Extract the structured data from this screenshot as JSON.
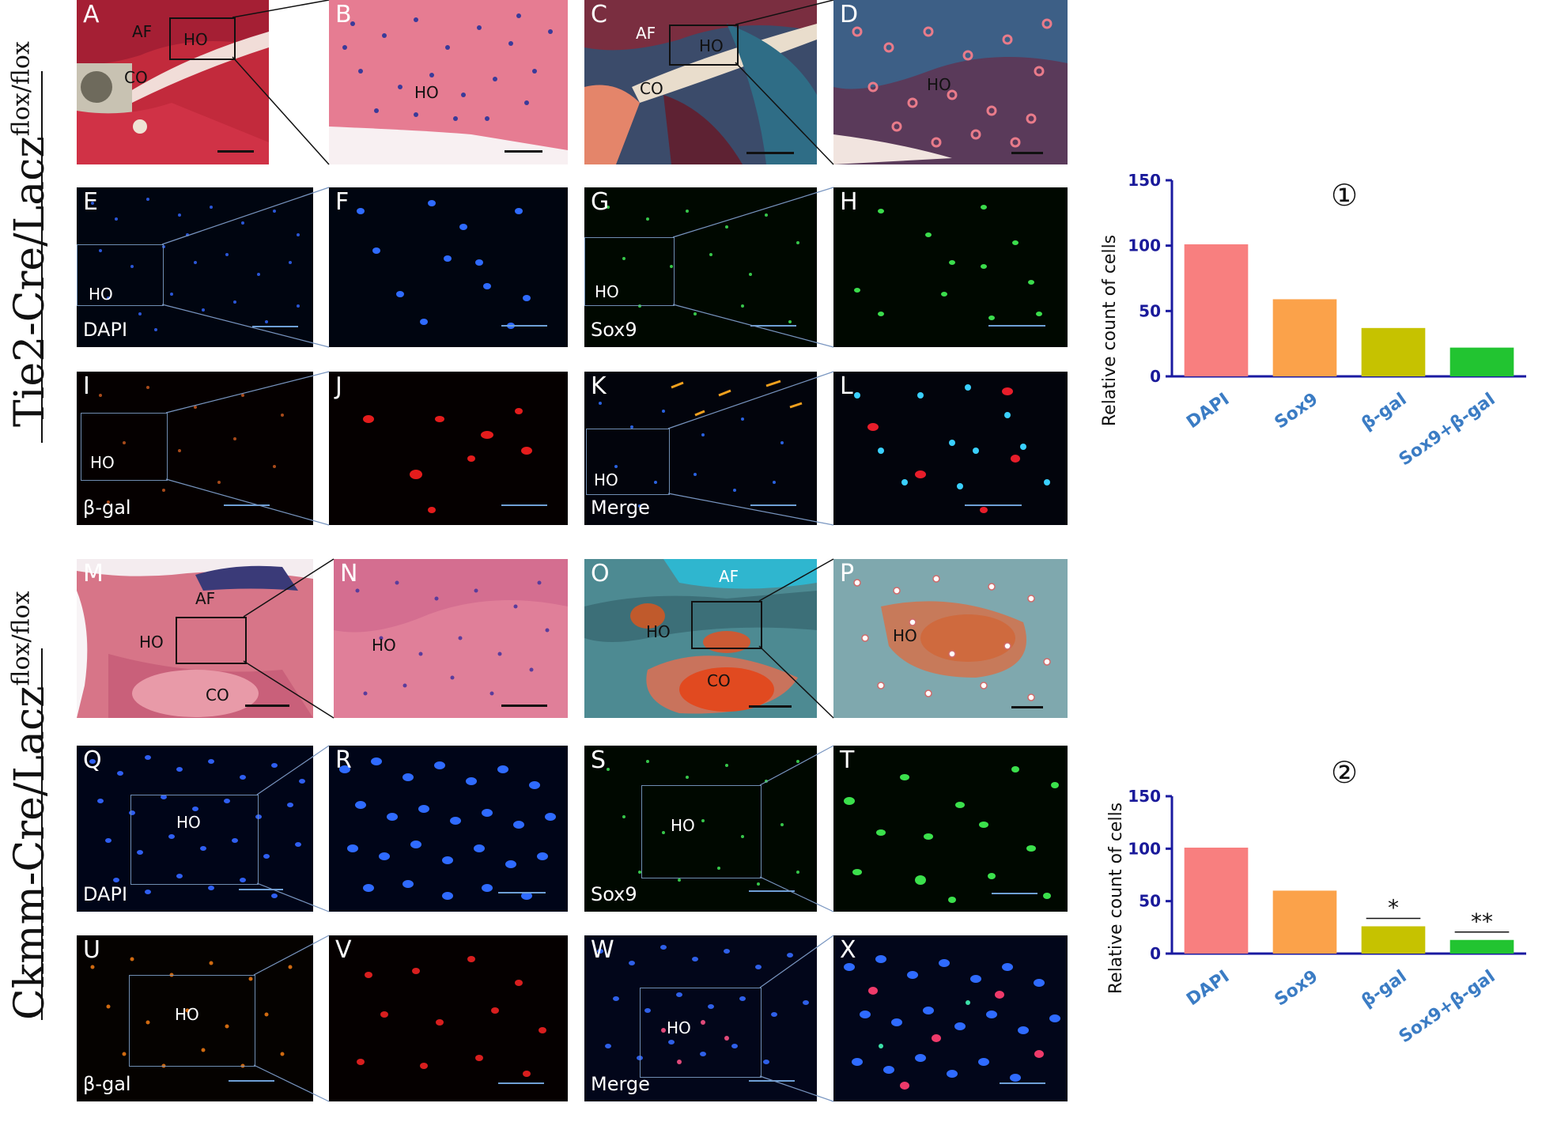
{
  "row_labels": {
    "top": {
      "main": "Tie2-Cre/Lacz",
      "sup": "flox/flox"
    },
    "bottom": {
      "main": "Ckmm-Cre/Lacz",
      "sup": "flox/flox"
    }
  },
  "panels": {
    "A": {
      "letter": "A",
      "labels": [
        "AF",
        "HO",
        "CO"
      ]
    },
    "B": {
      "letter": "B",
      "labels": [
        "HO"
      ]
    },
    "C": {
      "letter": "C",
      "labels": [
        "AF",
        "HO",
        "CO"
      ]
    },
    "D": {
      "letter": "D",
      "labels": [
        "HO"
      ]
    },
    "E": {
      "letter": "E",
      "labels": [
        "HO"
      ],
      "stain": "DAPI"
    },
    "F": {
      "letter": "F"
    },
    "G": {
      "letter": "G",
      "labels": [
        "HO"
      ],
      "stain": "Sox9"
    },
    "H": {
      "letter": "H"
    },
    "I": {
      "letter": "I",
      "labels": [
        "HO"
      ],
      "stain": "β-gal"
    },
    "J": {
      "letter": "J"
    },
    "K": {
      "letter": "K",
      "labels": [
        "HO"
      ],
      "stain": "Merge"
    },
    "L": {
      "letter": "L"
    },
    "M": {
      "letter": "M",
      "labels": [
        "AF",
        "HO",
        "CO"
      ]
    },
    "N": {
      "letter": "N",
      "labels": [
        "HO"
      ]
    },
    "O": {
      "letter": "O",
      "labels": [
        "AF",
        "HO",
        "CO"
      ]
    },
    "P": {
      "letter": "P",
      "labels": [
        "HO"
      ]
    },
    "Q": {
      "letter": "Q",
      "labels": [
        "HO"
      ],
      "stain": "DAPI"
    },
    "R": {
      "letter": "R"
    },
    "S": {
      "letter": "S",
      "labels": [
        "HO"
      ],
      "stain": "Sox9"
    },
    "T": {
      "letter": "T"
    },
    "U": {
      "letter": "U",
      "labels": [
        "HO"
      ],
      "stain": "β-gal"
    },
    "V": {
      "letter": "V"
    },
    "W": {
      "letter": "W",
      "labels": [
        "HO"
      ],
      "stain": "Merge"
    },
    "X": {
      "letter": "X"
    }
  },
  "colors": {
    "DAPI": "#f87f7f",
    "Sox9": "#fba24a",
    "beta_gal": "#c6c200",
    "Sox9_beta_gal": "#22c431",
    "axis": "#1a1aa0",
    "tick_label": "#1a1a9a",
    "category_label": "#3b7cc4"
  },
  "chart_data": [
    {
      "type": "bar",
      "title": "①",
      "ylabel": "Relative count of cells",
      "categories": [
        "DAPI",
        "Sox9",
        "β-gal",
        "Sox9+β-gal"
      ],
      "values": [
        101,
        59,
        37,
        22
      ],
      "ylim": [
        0,
        150
      ],
      "yticks": [
        "0",
        "50",
        "100",
        "150"
      ],
      "annotations": []
    },
    {
      "type": "bar",
      "title": "②",
      "ylabel": "Relative count of cells",
      "categories": [
        "DAPI",
        "Sox9",
        "β-gal",
        "Sox9+β-gal"
      ],
      "values": [
        101,
        60,
        26,
        13
      ],
      "ylim": [
        0,
        150
      ],
      "yticks": [
        "0",
        "50",
        "100",
        "150"
      ],
      "annotations": [
        "",
        "",
        "*",
        "**"
      ]
    }
  ]
}
